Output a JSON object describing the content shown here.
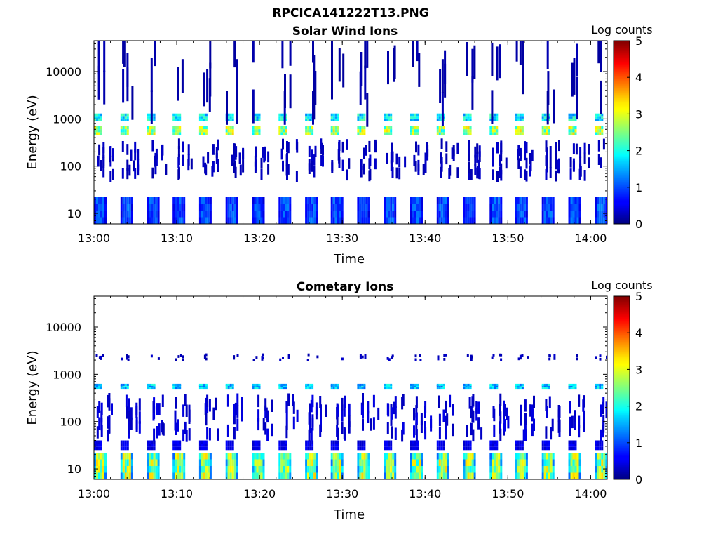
{
  "figure_title": "RPCICA141222T13.PNG",
  "chart_data": [
    {
      "type": "heatmap",
      "title": "Solar Wind Ions",
      "xlabel": "Time",
      "ylabel": "Energy (eV)",
      "colorbar_label": "Log counts",
      "y_scale": "log",
      "ylim": [
        6,
        45000
      ],
      "xlim": [
        "13:00",
        "14:02"
      ],
      "x_ticks": [
        "13:00",
        "13:10",
        "13:20",
        "13:30",
        "13:40",
        "13:50",
        "14:00"
      ],
      "y_ticks": [
        "10",
        "100",
        "1000",
        "10000"
      ],
      "colorbar_ticks": [
        "0",
        "1",
        "2",
        "3",
        "4",
        "5"
      ],
      "clim": [
        0,
        5
      ],
      "colormap": "jet",
      "sweep_start_minutes": [
        0,
        3.2,
        6.4,
        9.5,
        12.7,
        15.9,
        19.1,
        22.3,
        25.5,
        28.6,
        31.8,
        35.0,
        38.2,
        41.4,
        44.6,
        47.8,
        50.9,
        54.1,
        57.3,
        60.5
      ],
      "features": [
        {
          "energy_range": [
            6,
            22
          ],
          "level": 1.0,
          "description": "low energy band"
        },
        {
          "energy_range": [
            450,
            700
          ],
          "level": 2.6,
          "description": "solar wind proton peak"
        },
        {
          "energy_range": [
            900,
            1300
          ],
          "level": 1.8,
          "description": "alpha peak"
        },
        {
          "energy_range": [
            60,
            300
          ],
          "level": 0.3,
          "description": "scattered counts"
        },
        {
          "energy_range": [
            1500,
            40000
          ],
          "level": 0.2,
          "description": "background noise"
        }
      ]
    },
    {
      "type": "heatmap",
      "title": "Cometary Ions",
      "xlabel": "Time",
      "ylabel": "Energy (eV)",
      "colorbar_label": "Log counts",
      "y_scale": "log",
      "ylim": [
        6,
        45000
      ],
      "xlim": [
        "13:00",
        "14:02"
      ],
      "x_ticks": [
        "13:00",
        "13:10",
        "13:20",
        "13:30",
        "13:40",
        "13:50",
        "14:00"
      ],
      "y_ticks": [
        "10",
        "100",
        "1000",
        "10000"
      ],
      "colorbar_ticks": [
        "0",
        "1",
        "2",
        "3",
        "4",
        "5"
      ],
      "clim": [
        0,
        5
      ],
      "colormap": "jet",
      "sweep_start_minutes": [
        0,
        3.2,
        6.4,
        9.5,
        12.7,
        15.9,
        19.1,
        22.3,
        25.5,
        28.6,
        31.8,
        35.0,
        38.2,
        41.4,
        44.6,
        47.8,
        50.9,
        54.1,
        57.3,
        60.5
      ],
      "features": [
        {
          "energy_range": [
            6,
            22
          ],
          "level": 2.6,
          "description": "cometary ion band"
        },
        {
          "energy_range": [
            25,
            40
          ],
          "level": 0.5,
          "description": "edge of cometary band"
        },
        {
          "energy_range": [
            500,
            620
          ],
          "level": 1.6,
          "description": "solar wind spillover"
        },
        {
          "energy_range": [
            50,
            300
          ],
          "level": 0.4,
          "description": "dispersed counts"
        },
        {
          "energy_range": [
            2000,
            2600
          ],
          "level": 0.3,
          "description": "sparse counts"
        }
      ]
    }
  ]
}
